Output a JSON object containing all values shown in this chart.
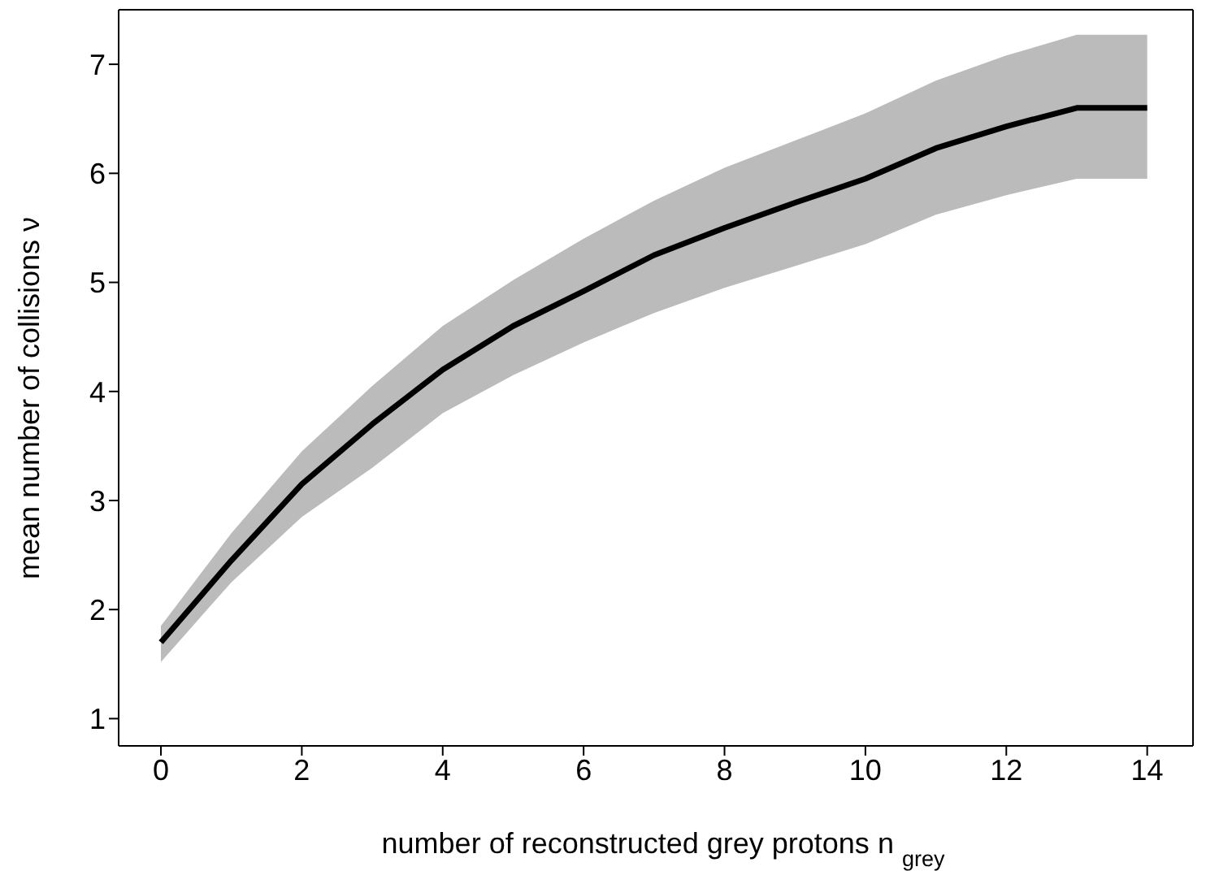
{
  "chart_data": {
    "type": "line",
    "xlabel": "number of reconstructed grey protons n $_{grey}$",
    "ylabel": "mean number of collisions ν",
    "x": [
      0,
      1,
      2,
      3,
      4,
      5,
      6,
      7,
      8,
      9,
      10,
      11,
      12,
      13,
      14
    ],
    "series": [
      {
        "color": "#000000",
        "values": [
          1.7,
          2.45,
          3.15,
          3.7,
          4.2,
          4.6,
          4.92,
          5.25,
          5.5,
          5.73,
          5.95,
          6.23,
          6.43,
          6.6,
          6.6
        ],
        "lower": [
          1.52,
          2.25,
          2.85,
          3.3,
          3.8,
          4.15,
          4.45,
          4.72,
          4.95,
          5.15,
          5.35,
          5.62,
          5.8,
          5.95,
          5.95
        ],
        "upper": [
          1.85,
          2.7,
          3.45,
          4.05,
          4.6,
          5.02,
          5.4,
          5.75,
          6.05,
          6.3,
          6.55,
          6.85,
          7.08,
          7.27,
          7.27
        ]
      }
    ],
    "xlim": [
      -0.6,
      14.65
    ],
    "xticks": [
      0,
      2,
      4,
      6,
      8,
      10,
      12,
      14
    ],
    "ylim": [
      0.75,
      7.5
    ],
    "yticks": [
      1,
      2,
      3,
      4,
      5,
      6,
      7
    ],
    "marker": "none",
    "line_style": "solid"
  }
}
